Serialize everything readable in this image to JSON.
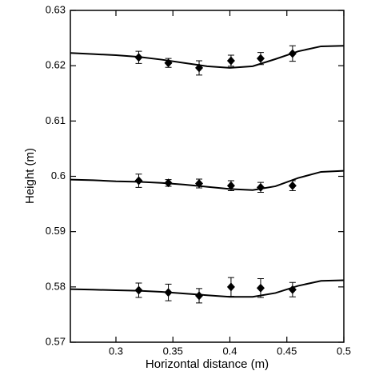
{
  "chart_data": {
    "type": "line",
    "x_label": "Horizontal distance (m)",
    "y_label": "Height (m)",
    "xlim": [
      0.26,
      0.5
    ],
    "xticks": [
      0.3,
      0.35,
      0.4,
      0.45,
      0.5
    ],
    "ylim": [
      0.57,
      0.63
    ],
    "yticks": [
      0.57,
      0.58,
      0.59,
      0.6,
      0.61,
      0.62,
      0.63
    ],
    "x": [
      0.26,
      0.28,
      0.3,
      0.32,
      0.34,
      0.36,
      0.38,
      0.4,
      0.42,
      0.44,
      0.46,
      0.48,
      0.5
    ],
    "series": [
      {
        "color": "#000000",
        "values": [
          0.6223,
          0.6221,
          0.6219,
          0.6216,
          0.6211,
          0.6205,
          0.6199,
          0.6196,
          0.6199,
          0.6212,
          0.6226,
          0.6235,
          0.6236
        ]
      },
      {
        "color": "#000000",
        "values": [
          0.5994,
          0.5993,
          0.5991,
          0.599,
          0.5988,
          0.5985,
          0.5981,
          0.5977,
          0.5975,
          0.5982,
          0.5997,
          0.6008,
          0.601
        ]
      },
      {
        "color": "#000000",
        "values": [
          0.5796,
          0.5795,
          0.5794,
          0.5793,
          0.5791,
          0.5788,
          0.5785,
          0.5782,
          0.5782,
          0.5789,
          0.5802,
          0.5811,
          0.5812
        ]
      }
    ],
    "marker_x": [
      0.32,
      0.346,
      0.373,
      0.401,
      0.427,
      0.455
    ],
    "marker_series": [
      {
        "color": "#000000",
        "values": [
          0.6215,
          0.6205,
          0.6196,
          0.6209,
          0.6213,
          0.6222
        ],
        "errors": [
          0.0011,
          0.0008,
          0.0013,
          0.001,
          0.0011,
          0.0014
        ]
      },
      {
        "color": "#000000",
        "values": [
          0.5992,
          0.5988,
          0.5987,
          0.5983,
          0.598,
          0.5983
        ],
        "errors": [
          0.0012,
          0.0006,
          0.0008,
          0.0009,
          0.0009,
          0.0009
        ]
      },
      {
        "color": "#000000",
        "values": [
          0.5794,
          0.579,
          0.5784,
          0.58,
          0.5798,
          0.5795
        ],
        "errors": [
          0.0013,
          0.0015,
          0.0013,
          0.0017,
          0.0017,
          0.0013
        ]
      }
    ]
  }
}
